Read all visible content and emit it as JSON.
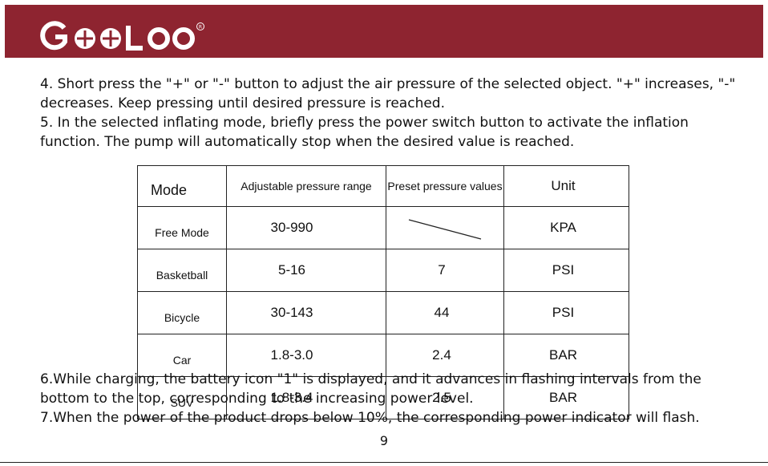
{
  "header": {
    "brand": "GOOLOO",
    "registered_mark": "R",
    "bg_color": "#8e2430"
  },
  "paragraphs_top": [
    "4. Short press the \"+\" or \"-\" button to adjust the air pressure of the selected object. \"+\" increases, \"-\" decreases. Keep pressing until desired pressure is reached.",
    "5. In the selected inflating mode, briefly press the power switch button to activate the inflation function. The pump will automatically stop when the desired value is reached."
  ],
  "table": {
    "headers": [
      "Mode",
      "Adjustable pressure range",
      "Preset pressure values",
      "Unit"
    ],
    "rows": [
      {
        "mode": "Free Mode",
        "range": "30-990",
        "preset": "",
        "unit": "KPA"
      },
      {
        "mode": "Basketball",
        "range": "5-16",
        "preset": "7",
        "unit": "PSI"
      },
      {
        "mode": "Bicycle",
        "range": "30-143",
        "preset": "44",
        "unit": "PSI"
      },
      {
        "mode": "Car",
        "range": "1.8-3.0",
        "preset": "2.4",
        "unit": "BAR"
      },
      {
        "mode": "SUV",
        "range": "1.8-3.4",
        "preset": "2.5",
        "unit": "BAR"
      }
    ]
  },
  "paragraphs_bottom": [
    "6.While charging, the battery icon \"1\" is displayed, and it advances in flashing intervals from the bottom to the top, corresponding to the increasing power level.",
    "7.When the power of the product drops below 10%, the corresponding power indicator will flash."
  ],
  "page_number": "9"
}
